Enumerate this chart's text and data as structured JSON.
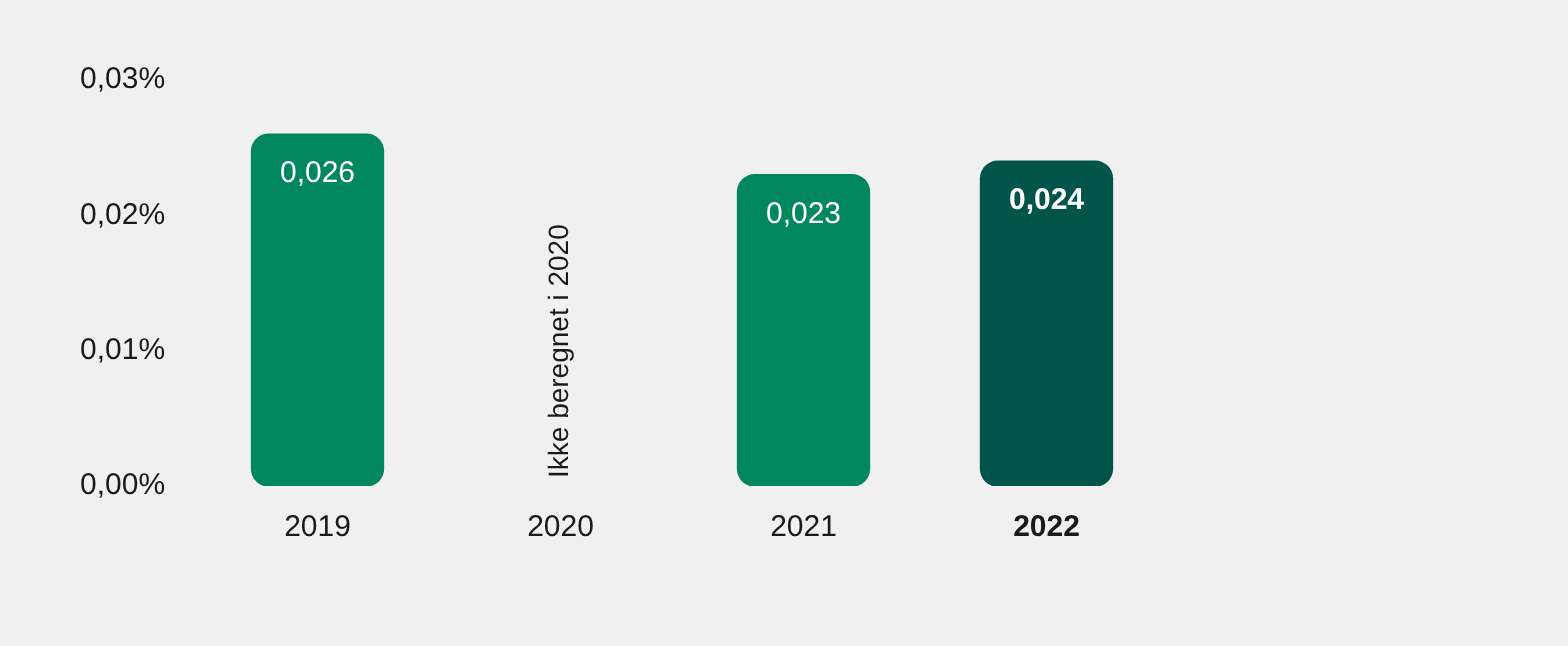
{
  "chart_data": {
    "type": "bar",
    "categories": [
      "2019",
      "2020",
      "2021",
      "2022"
    ],
    "values": [
      0.026,
      null,
      0.023,
      0.024
    ],
    "colors": [
      "#00875f",
      "#00875f",
      "#00875f",
      "#00544a"
    ],
    "value_labels": [
      "0,026",
      null,
      "0,023",
      "0,024"
    ],
    "ylim": [
      0,
      0.03
    ],
    "yticks": [
      {
        "value": 0,
        "label": "0,00%"
      },
      {
        "value": 0.01,
        "label": "0,01%"
      },
      {
        "value": 0.02,
        "label": "0,02%"
      },
      {
        "value": 0.03,
        "label": "0,03%"
      }
    ],
    "annotations": [
      "Ikke beregnet i 2020"
    ],
    "grid": false,
    "legend": false
  }
}
